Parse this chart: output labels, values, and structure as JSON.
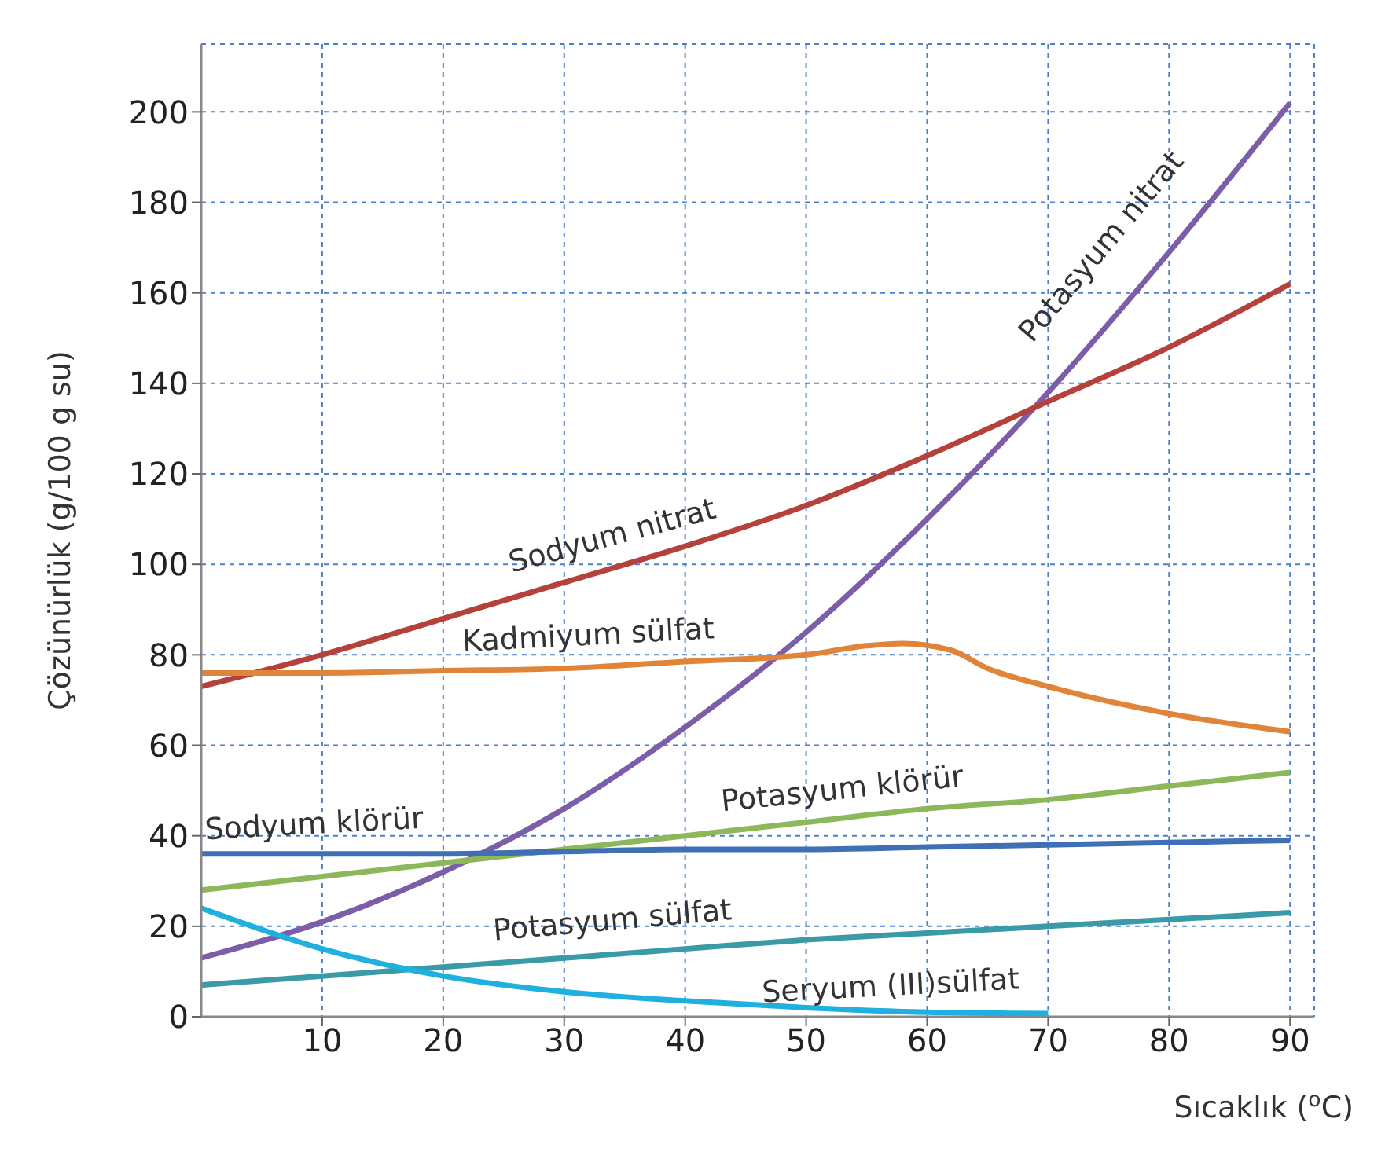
{
  "chart_data": {
    "type": "line",
    "xlabel": "Sıcaklık ($^{o}$C)",
    "ylabel": "Çözünürlük (g/100 g su)",
    "xlim": [
      0,
      92
    ],
    "xticks": [
      10,
      20,
      30,
      40,
      50,
      60,
      70,
      80,
      90
    ],
    "ylim": [
      0,
      215
    ],
    "yticks": [
      0,
      20,
      40,
      60,
      80,
      100,
      120,
      140,
      160,
      180,
      200
    ],
    "grid": true,
    "series": [
      {
        "name": "Potasyum nitrat",
        "color": "#7b5ea7",
        "x": [
          0,
          10,
          20,
          30,
          40,
          50,
          60,
          70,
          80,
          90
        ],
        "values": [
          13,
          21,
          32,
          46,
          64,
          85,
          110,
          138,
          169,
          202
        ]
      },
      {
        "name": "Sodyum nitrat",
        "color": "#b5413b",
        "x": [
          0,
          10,
          20,
          30,
          40,
          50,
          60,
          70,
          80,
          90
        ],
        "values": [
          73,
          80,
          88,
          96,
          104,
          113,
          124,
          136,
          148,
          162
        ]
      },
      {
        "name": "Kadmiyum sülfat",
        "color": "#e0843a",
        "x": [
          0,
          10,
          20,
          30,
          40,
          50,
          55,
          58,
          62,
          65,
          70,
          80,
          90
        ],
        "values": [
          76,
          76,
          76.5,
          77,
          78.5,
          80,
          82,
          82.5,
          81,
          77,
          73,
          67,
          63
        ]
      },
      {
        "name": "Potasyum klörür",
        "color": "#8cb85a",
        "x": [
          0,
          10,
          20,
          30,
          40,
          50,
          60,
          70,
          80,
          90
        ],
        "values": [
          28,
          31,
          34,
          37,
          40,
          43,
          46,
          48,
          51,
          54
        ]
      },
      {
        "name": "Sodyum klörür",
        "color": "#3f6fb5",
        "x": [
          0,
          10,
          20,
          30,
          40,
          50,
          60,
          70,
          80,
          90
        ],
        "values": [
          36,
          36,
          36,
          36.5,
          37,
          37,
          37.5,
          38,
          38.5,
          39
        ]
      },
      {
        "name": "Potasyum sülfat",
        "color": "#3a9aa8",
        "x": [
          0,
          10,
          20,
          30,
          40,
          50,
          60,
          70,
          80,
          90
        ],
        "values": [
          7,
          9,
          11,
          13,
          15,
          17,
          18.5,
          20,
          21.5,
          23
        ]
      },
      {
        "name": "Seryum (III)sülfat",
        "color": "#1fb0e0",
        "x": [
          0,
          10,
          20,
          30,
          40,
          50,
          60,
          70
        ],
        "values": [
          24,
          15,
          9,
          5.5,
          3.5,
          2,
          1,
          0.7
        ]
      }
    ]
  }
}
